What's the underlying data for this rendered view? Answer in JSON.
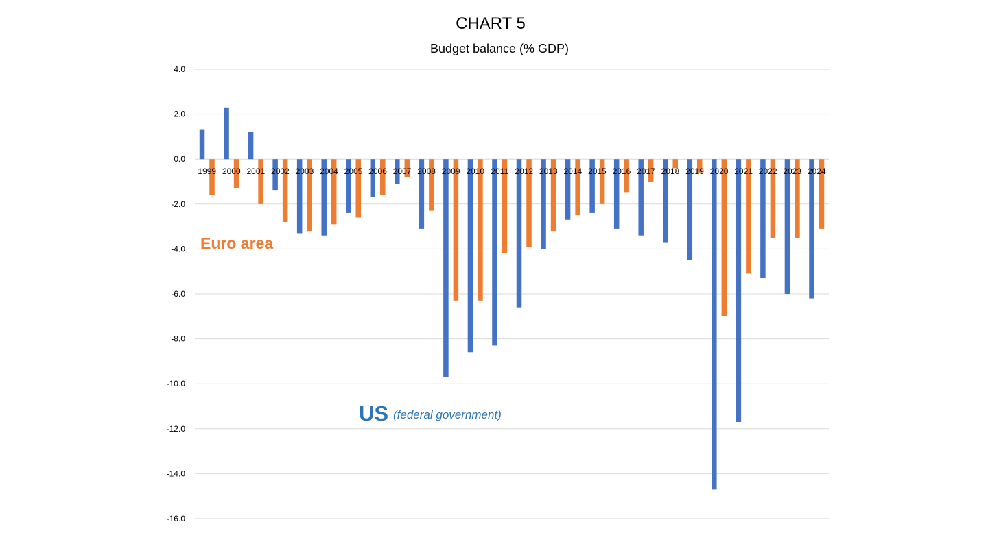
{
  "chart_data": {
    "type": "bar",
    "title": "CHART 5",
    "subtitle": "Budget balance (% GDP)",
    "xlabel": "",
    "ylabel": "",
    "ylim": [
      -16,
      4
    ],
    "yticks": [
      4,
      2,
      0,
      -2,
      -4,
      -6,
      -8,
      -10,
      -12,
      -14,
      -16
    ],
    "ytick_labels": [
      "4.0",
      "2.0",
      "0.0",
      "-2.0",
      "-4.0",
      "-6.0",
      "-8.0",
      "-10.0",
      "-12.0",
      "-14.0",
      "-16.0"
    ],
    "grid": true,
    "categories": [
      "1999",
      "2000",
      "2001",
      "2002",
      "2003",
      "2004",
      "2005",
      "2006",
      "2007",
      "2008",
      "2009",
      "2010",
      "2011",
      "2012",
      "2013",
      "2014",
      "2015",
      "2016",
      "2017",
      "2018",
      "2019",
      "2020",
      "2021",
      "2022",
      "2023",
      "2024"
    ],
    "series": [
      {
        "name": "US",
        "color": "#4472c4",
        "values": [
          1.3,
          2.3,
          1.2,
          -1.4,
          -3.3,
          -3.4,
          -2.4,
          -1.7,
          -1.1,
          -3.1,
          -9.7,
          -8.6,
          -8.3,
          -6.6,
          -4.0,
          -2.7,
          -2.4,
          -3.1,
          -3.4,
          -3.7,
          -4.5,
          -14.7,
          -11.7,
          -5.3,
          -6.0,
          -6.2
        ]
      },
      {
        "name": "Euro area",
        "color": "#ed7d31",
        "values": [
          -1.6,
          -1.3,
          -2.0,
          -2.8,
          -3.2,
          -2.9,
          -2.6,
          -1.6,
          -0.8,
          -2.3,
          -6.3,
          -6.3,
          -4.2,
          -3.9,
          -3.2,
          -2.5,
          -2.0,
          -1.5,
          -1.0,
          -0.4,
          -0.6,
          -7.0,
          -5.1,
          -3.5,
          -3.5,
          -3.1
        ]
      }
    ],
    "annotations": {
      "euro_area_label": "Euro area",
      "euro_area_color": "#ed7d31",
      "us_label": "US",
      "us_sublabel": "(federal government)",
      "us_color": "#2e75b6"
    }
  }
}
